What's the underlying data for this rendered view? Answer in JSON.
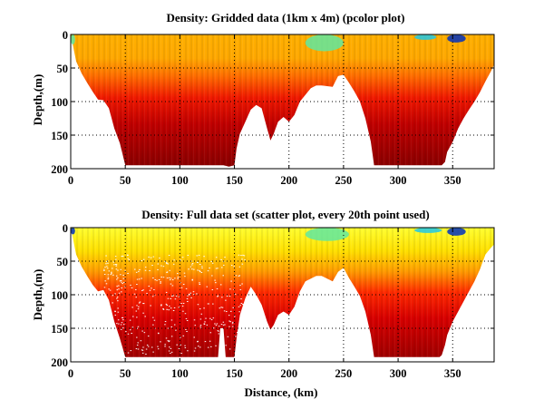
{
  "chart_data": [
    {
      "type": "heatmap",
      "subtype": "pcolor",
      "title": "Density: Gridded data (1km x 4m) (pcolor plot)",
      "xlabel": "",
      "ylabel": "Depth,(m)",
      "xlim": [
        0,
        388
      ],
      "ylim": [
        0,
        200
      ],
      "y_reversed": true,
      "xticks": [
        0,
        50,
        100,
        150,
        200,
        250,
        300,
        350
      ],
      "yticks": [
        0,
        50,
        100,
        150,
        200
      ],
      "grid": true,
      "colormap": "jet",
      "colorbar": false,
      "bottom_depth_profile": {
        "distance_km": [
          0,
          5,
          10,
          15,
          20,
          25,
          30,
          35,
          40,
          45,
          50,
          55,
          100,
          140,
          145,
          150,
          152,
          155,
          160,
          165,
          170,
          175,
          180,
          183,
          186,
          190,
          195,
          200,
          205,
          210,
          215,
          220,
          225,
          230,
          240,
          245,
          250,
          255,
          260,
          265,
          270,
          275,
          278,
          300,
          340,
          343,
          345,
          350,
          355,
          360,
          365,
          370,
          375,
          380,
          385,
          388
        ],
        "depth_m": [
          0,
          40,
          58,
          72,
          85,
          97,
          98,
          110,
          140,
          162,
          195,
          195,
          195,
          195,
          197,
          195,
          170,
          148,
          130,
          112,
          105,
          110,
          140,
          158,
          148,
          130,
          123,
          130,
          120,
          100,
          90,
          80,
          76,
          76,
          78,
          62,
          60,
          72,
          85,
          100,
          125,
          160,
          195,
          195,
          195,
          190,
          175,
          160,
          140,
          125,
          112,
          100,
          86,
          70,
          55,
          45
        ]
      },
      "surface_anomalies": [
        {
          "distance_km": [
            0,
            4
          ],
          "depth_m": [
            0,
            15
          ],
          "description": "low-density blue patch near start"
        },
        {
          "distance_km": [
            215,
            250
          ],
          "depth_m": [
            0,
            25
          ],
          "description": "green/cyan lighter water"
        },
        {
          "distance_km": [
            315,
            335
          ],
          "depth_m": [
            0,
            8
          ],
          "description": "cyan patch"
        },
        {
          "distance_km": [
            345,
            362
          ],
          "depth_m": [
            0,
            12
          ],
          "description": "dark blue low-density patch"
        }
      ]
    },
    {
      "type": "scatter",
      "subtype": "colored scatter",
      "title": "Density: Full data set (scatter plot, every 20th point used)",
      "xlabel": "Distance, (km)",
      "ylabel": "Depth,(m)",
      "xlim": [
        0,
        388
      ],
      "ylim": [
        0,
        200
      ],
      "y_reversed": true,
      "xticks": [
        0,
        50,
        100,
        150,
        200,
        250,
        300,
        350
      ],
      "yticks": [
        0,
        50,
        100,
        150,
        200
      ],
      "grid": true,
      "colormap": "jet",
      "colorbar": false,
      "bottom_depth_profile": {
        "distance_km": [
          0,
          5,
          10,
          15,
          20,
          25,
          30,
          35,
          40,
          45,
          50,
          55,
          100,
          135,
          137,
          140,
          142,
          150,
          152,
          155,
          160,
          165,
          170,
          175,
          180,
          183,
          186,
          190,
          195,
          200,
          205,
          210,
          215,
          220,
          225,
          230,
          240,
          245,
          250,
          255,
          260,
          265,
          270,
          275,
          278,
          300,
          338,
          340,
          343,
          345,
          350,
          355,
          360,
          365,
          370,
          375,
          380,
          385,
          388
        ],
        "depth_m": [
          0,
          40,
          58,
          72,
          85,
          95,
          93,
          108,
          140,
          165,
          193,
          193,
          193,
          193,
          150,
          150,
          193,
          193,
          165,
          130,
          105,
          88,
          100,
          115,
          140,
          152,
          145,
          130,
          125,
          130,
          118,
          95,
          80,
          76,
          72,
          72,
          80,
          66,
          60,
          75,
          88,
          102,
          125,
          160,
          193,
          193,
          193,
          190,
          175,
          160,
          140,
          125,
          110,
          95,
          80,
          62,
          40,
          30,
          25
        ]
      },
      "surface_anomalies": [
        {
          "distance_km": [
            0,
            4
          ],
          "depth_m": [
            0,
            10
          ],
          "description": "dark blue patch near start"
        },
        {
          "distance_km": [
            215,
            255
          ],
          "depth_m": [
            0,
            20
          ],
          "description": "green/cyan lighter water"
        },
        {
          "distance_km": [
            315,
            340
          ],
          "depth_m": [
            0,
            8
          ],
          "description": "cyan/blue patch"
        },
        {
          "distance_km": [
            345,
            362
          ],
          "depth_m": [
            0,
            12
          ],
          "description": "dark blue low-density patch"
        }
      ]
    }
  ]
}
